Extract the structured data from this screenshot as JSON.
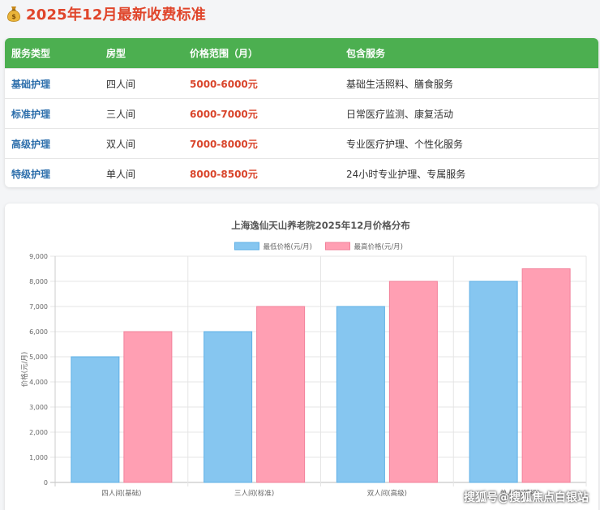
{
  "heading": {
    "icon": "money-bag-icon",
    "title": "2025年12月最新收费标准"
  },
  "table": {
    "headers": [
      "服务类型",
      "房型",
      "价格范围（月）",
      "包含服务"
    ],
    "rows": [
      {
        "type": "基础护理",
        "room": "四人间",
        "price": "5000-6000元",
        "services": "基础生活照料、膳食服务"
      },
      {
        "type": "标准护理",
        "room": "三人间",
        "price": "6000-7000元",
        "services": "日常医疗监测、康复活动"
      },
      {
        "type": "高级护理",
        "room": "双人间",
        "price": "7000-8000元",
        "services": "专业医疗护理、个性化服务"
      },
      {
        "type": "特级护理",
        "room": "单人间",
        "price": "8000-8500元",
        "services": "24小时专业护理、专属服务"
      }
    ]
  },
  "colors": {
    "header_bg": "#4caf50",
    "accent_red": "#e0452b",
    "type_blue": "#2c6eab"
  },
  "chart_data": {
    "type": "bar",
    "title": "上海逸仙天山养老院2025年12月价格分布",
    "categories": [
      "四人间(基础)",
      "三人间(标准)",
      "双人间(高级)",
      "单人间(特级)"
    ],
    "series": [
      {
        "name": "最低价格(元/月)",
        "values": [
          5000,
          6000,
          7000,
          8000
        ],
        "color": "#86c6f0",
        "border": "#5fb0e6"
      },
      {
        "name": "最高价格(元/月)",
        "values": [
          6000,
          7000,
          8000,
          8500
        ],
        "color": "#ff9fb3",
        "border": "#f2809a"
      }
    ],
    "ylabel": "价格(元/月)",
    "xlabel": "",
    "ylim": [
      0,
      9000
    ],
    "yticks": [
      "0",
      "1,000",
      "2,000",
      "3,000",
      "4,000",
      "5,000",
      "6,000",
      "7,000",
      "8,000",
      "9,000"
    ],
    "legend": "top",
    "grid": true
  },
  "watermark": "搜狐号@搜狐焦点白银站"
}
